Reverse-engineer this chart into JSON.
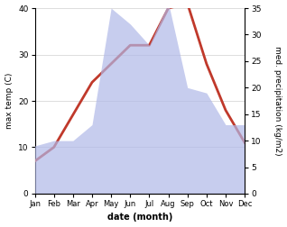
{
  "months": [
    "Jan",
    "Feb",
    "Mar",
    "Apr",
    "May",
    "Jun",
    "Jul",
    "Aug",
    "Sep",
    "Oct",
    "Nov",
    "Dec"
  ],
  "temperature": [
    7,
    10,
    17,
    24,
    28,
    32,
    32,
    40,
    41,
    28,
    18,
    11
  ],
  "precipitation": [
    9,
    10,
    10,
    13,
    35,
    32,
    28,
    36,
    20,
    19,
    13,
    13
  ],
  "temp_color": "#c0392b",
  "precip_color": "#b0b8e8",
  "temp_ylim": [
    0,
    40
  ],
  "precip_ylim": [
    0,
    35
  ],
  "temp_yticks": [
    0,
    10,
    20,
    30,
    40
  ],
  "precip_yticks": [
    0,
    5,
    10,
    15,
    20,
    25,
    30,
    35
  ],
  "xlabel": "date (month)",
  "ylabel_left": "max temp (C)",
  "ylabel_right": "med. precipitation (kg/m2)",
  "bg_color": "#ffffff",
  "grid_color": "#d0d0d0"
}
